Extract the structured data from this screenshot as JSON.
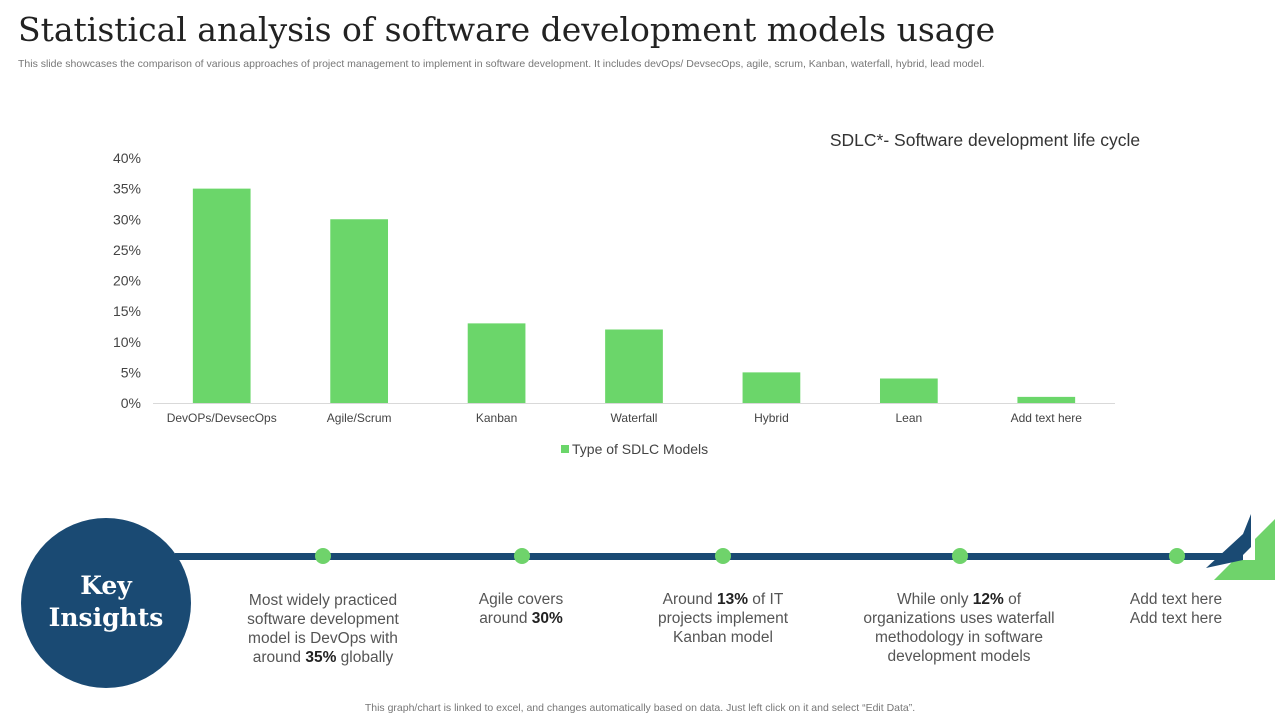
{
  "header": {
    "title": "Statistical analysis of software development models usage",
    "subtitle": "This slide showcases the comparison of various approaches of project management to implement in software development. It includes devOps/ DevsecOps, agile, scrum, Kanban, waterfall, hybrid, lead model."
  },
  "chart_data": {
    "type": "bar",
    "title": "SDLC*- Software development life cycle",
    "categories": [
      "DevOPs/DevsecOps",
      "Agile/Scrum",
      "Kanban",
      "Waterfall",
      "Hybrid",
      "Lean",
      "Add text here"
    ],
    "series": [
      {
        "name": "Type of SDLC Models",
        "values": [
          35,
          30,
          13,
          12,
          5,
          4,
          1
        ]
      }
    ],
    "ylim": [
      0,
      40
    ],
    "yticks": [
      "0%",
      "5%",
      "10%",
      "15%",
      "20%",
      "25%",
      "30%",
      "35%",
      "40%"
    ],
    "xlabel": "",
    "ylabel": "",
    "legend": "bottom-center",
    "color": "#6bd66a"
  },
  "insights": {
    "title_line1": "Key",
    "title_line2": "Insights",
    "items": [
      {
        "line1": "Most widely practiced",
        "line2": "software development",
        "line3": "model is DevOps with",
        "line4_pre": "around ",
        "line4_bold": "35%",
        "line4_post": " globally"
      },
      {
        "line1": "Agile covers",
        "line2_pre": "around ",
        "line2_bold": "30%"
      },
      {
        "line1_pre": "Around ",
        "line1_bold": "13%",
        "line1_post": " of IT",
        "line2": "projects implement",
        "line3": "Kanban model"
      },
      {
        "line1_pre": "While only ",
        "line1_bold": "12%",
        "line1_post": " of",
        "line2": "organizations uses waterfall",
        "line3": "methodology  in software",
        "line4": "development  models"
      },
      {
        "line1": "Add text here",
        "line2": "Add text here"
      }
    ]
  },
  "footer": {
    "note": "This graph/chart is linked to excel,  and changes automatically based on data. Just left click on it and select “Edit Data”."
  },
  "colors": {
    "navy": "#1a4a73",
    "green": "#6fd36b"
  }
}
